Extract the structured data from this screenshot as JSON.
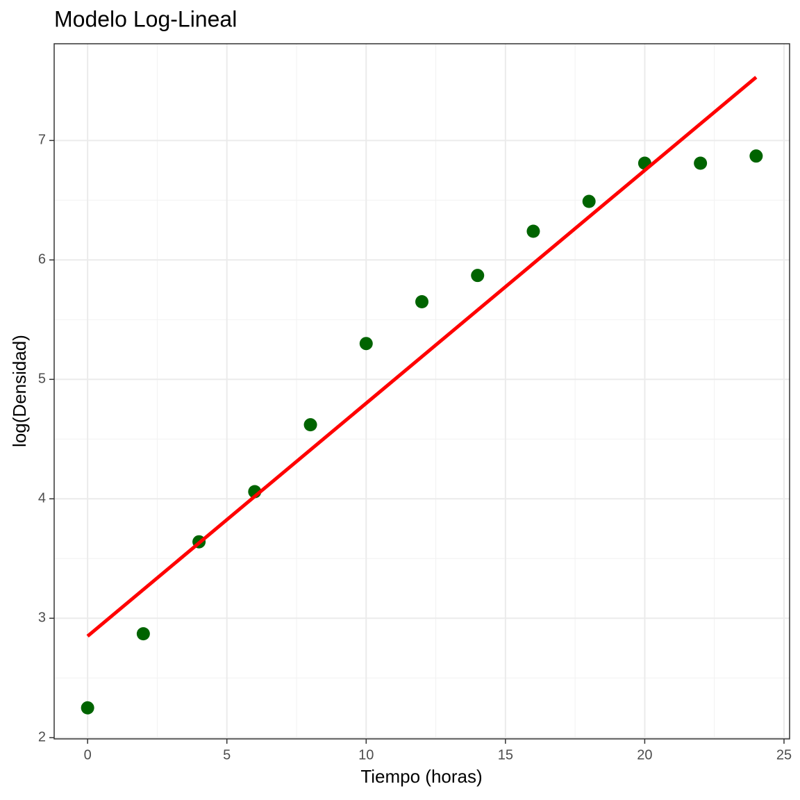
{
  "chart_data": {
    "type": "scatter",
    "title": "Modelo Log-Lineal",
    "x_label": "Tiempo (horas)",
    "y_label": "log(Densidad)",
    "series": [
      {
        "type": "scatter",
        "color": "#006400",
        "x": [
          0,
          2,
          4,
          6,
          8,
          10,
          12,
          14,
          16,
          18,
          20,
          22,
          24
        ],
        "values": [
          2.25,
          2.87,
          3.64,
          4.06,
          4.62,
          5.3,
          5.65,
          5.87,
          6.24,
          6.49,
          6.81,
          6.81,
          6.87
        ]
      },
      {
        "type": "line",
        "color": "#ff0000",
        "x": [
          0,
          24
        ],
        "values": [
          2.85,
          7.53
        ]
      }
    ],
    "xlim": [
      -1.2,
      25.2
    ],
    "xticks": [
      0,
      5,
      10,
      15,
      20,
      25
    ],
    "ylim": [
      1.99,
      7.81
    ],
    "yticks": [
      2,
      3,
      4,
      5,
      6,
      7
    ],
    "grid": true,
    "minor_grid": true
  }
}
